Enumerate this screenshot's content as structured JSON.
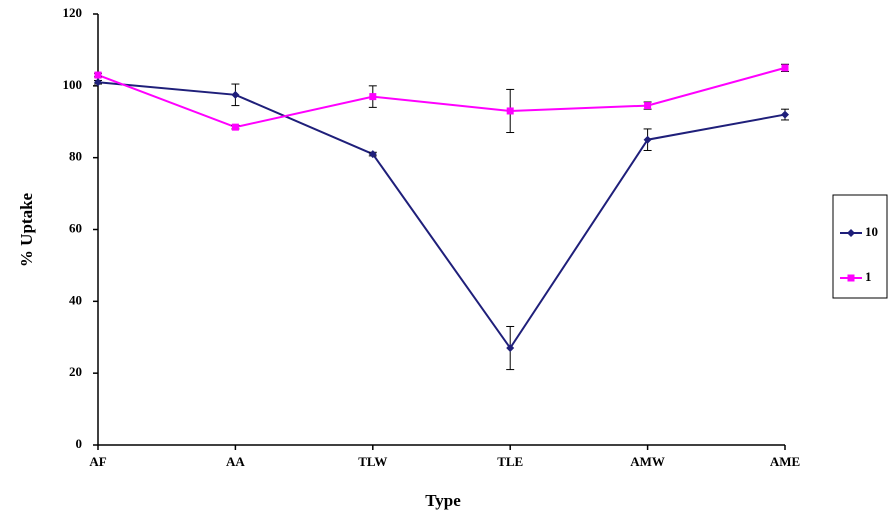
{
  "chart_data": {
    "type": "line",
    "x_label": "Type",
    "y_label": "% Uptake",
    "categories": [
      "AF",
      "AA",
      "TLW",
      "TLE",
      "AMW",
      "AME"
    ],
    "series": [
      {
        "name": "10",
        "color": "#1f1f7a",
        "marker": "diamond",
        "values": [
          101,
          97.5,
          81,
          27,
          85,
          92
        ],
        "errors": [
          0.5,
          3,
          0.5,
          6,
          3,
          1.5
        ]
      },
      {
        "name": "1",
        "color": "#ff00ff",
        "marker": "square",
        "values": [
          103,
          88.5,
          97,
          93,
          94.5,
          105
        ],
        "errors": [
          0.5,
          0.5,
          3,
          6,
          1,
          1
        ]
      }
    ],
    "ylim": [
      0,
      120
    ],
    "yticks": [
      0,
      20,
      40,
      60,
      80,
      100,
      120
    ],
    "grid": false,
    "legend": "right"
  }
}
